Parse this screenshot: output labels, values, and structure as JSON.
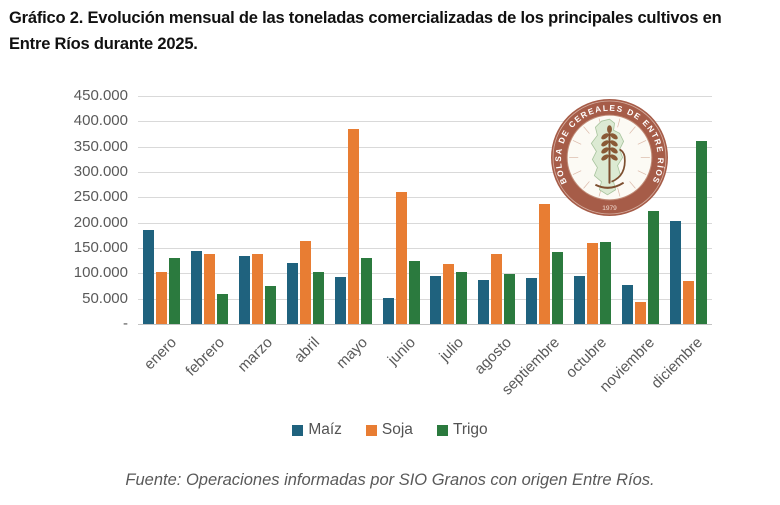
{
  "title": "Gráfico 2. Evolución mensual de las toneladas comercializadas de los principales cultivos en Entre Ríos durante 2025.",
  "source": "Fuente: Operaciones informadas por SIO Granos con origen Entre Ríos.",
  "logo": {
    "ring_text": "BOLSA DE CEREALES DE ENTRE RÍOS",
    "year": "1979"
  },
  "chart_data": {
    "type": "bar",
    "title": "",
    "xlabel": "",
    "ylabel": "",
    "categories": [
      "enero",
      "febrero",
      "marzo",
      "abril",
      "mayo",
      "junio",
      "julio",
      "agosto",
      "septiembre",
      "octubre",
      "noviembre",
      "diciembre"
    ],
    "series": [
      {
        "name": "Maíz",
        "color": "#1f627e",
        "values": [
          185000,
          145000,
          134000,
          120000,
          93000,
          51000,
          95000,
          87000,
          91000,
          95000,
          77000,
          204000
        ]
      },
      {
        "name": "Soja",
        "color": "#e87d33",
        "values": [
          102000,
          139000,
          139000,
          164000,
          385000,
          260000,
          118000,
          139000,
          237000,
          160000,
          44000,
          85000
        ]
      },
      {
        "name": "Trigo",
        "color": "#2b7a3e",
        "values": [
          130000,
          60000,
          75000,
          102000,
          130000,
          124000,
          102000,
          99000,
          143000,
          162000,
          224000,
          362000
        ]
      }
    ],
    "ylim": [
      0,
      450000
    ],
    "ytick_step": 50000,
    "ytick_labels": [
      "-",
      "50.000",
      "100.000",
      "150.000",
      "200.000",
      "250.000",
      "300.000",
      "350.000",
      "400.000",
      "450.000"
    ],
    "grid": true,
    "legend_position": "bottom"
  }
}
